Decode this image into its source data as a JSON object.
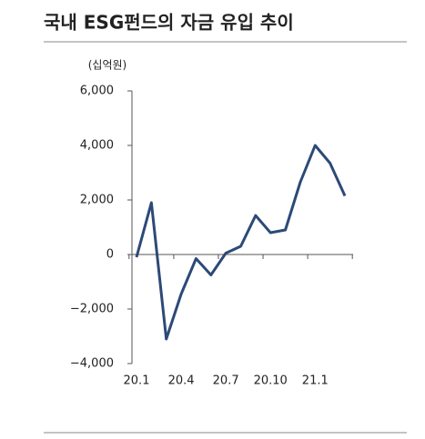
{
  "chart_data": {
    "type": "line",
    "title": "국내 ESG펀드의 자금 유입 추이",
    "y_label": "(십억원)",
    "categories": [
      "20.1",
      null,
      null,
      "20.4",
      null,
      null,
      "20.7",
      null,
      null,
      "20.10",
      null,
      null,
      "21.1",
      null,
      null
    ],
    "values": [
      -100,
      1900,
      -3100,
      -1450,
      -150,
      -750,
      50,
      300,
      1430,
      800,
      900,
      2650,
      4000,
      3350,
      2150
    ],
    "color": "#2c4a77",
    "ylim": [
      -4000,
      6000
    ],
    "yticks": [
      {
        "value": -4000,
        "label": "−4,000"
      },
      {
        "value": -2000,
        "label": "−2,000"
      },
      0,
      {
        "value": 2000,
        "label": "2,000"
      },
      {
        "value": 4000,
        "label": "4,000"
      },
      {
        "value": 6000,
        "label": "6,000"
      }
    ]
  }
}
